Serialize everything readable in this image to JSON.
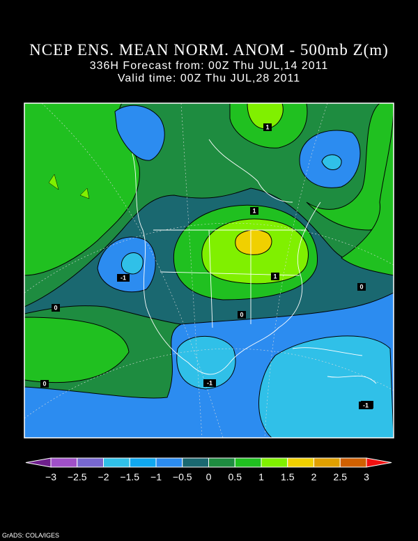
{
  "header": {
    "title": "NCEP ENS. MEAN NORM. ANOM - 500mb Z(m)",
    "line1": "336H Forecast from: 00Z Thu JUL,14 2011",
    "line2": "Valid time: 00Z Thu JUL,28 2011"
  },
  "map": {
    "contour_labels": [
      "1",
      "1",
      "1",
      "-1",
      "-1",
      "0",
      "0",
      "0",
      "0",
      "-1",
      "-1"
    ]
  },
  "colorbar": {
    "labels": [
      "−3",
      "−2.5",
      "−2",
      "−1.5",
      "−1",
      "−0.5",
      "0",
      "0.5",
      "1",
      "1.5",
      "2",
      "2.5",
      "3"
    ],
    "colors": [
      "#6e1f8c",
      "#a050c8",
      "#7868d0",
      "#30c0e8",
      "#10a8f0",
      "#2c8cf0",
      "#1a6870",
      "#1e8c40",
      "#20c020",
      "#80f000",
      "#f0d000",
      "#e0a000",
      "#d06000",
      "#f01010"
    ]
  },
  "footer": "GrADS: COLA/IGES"
}
